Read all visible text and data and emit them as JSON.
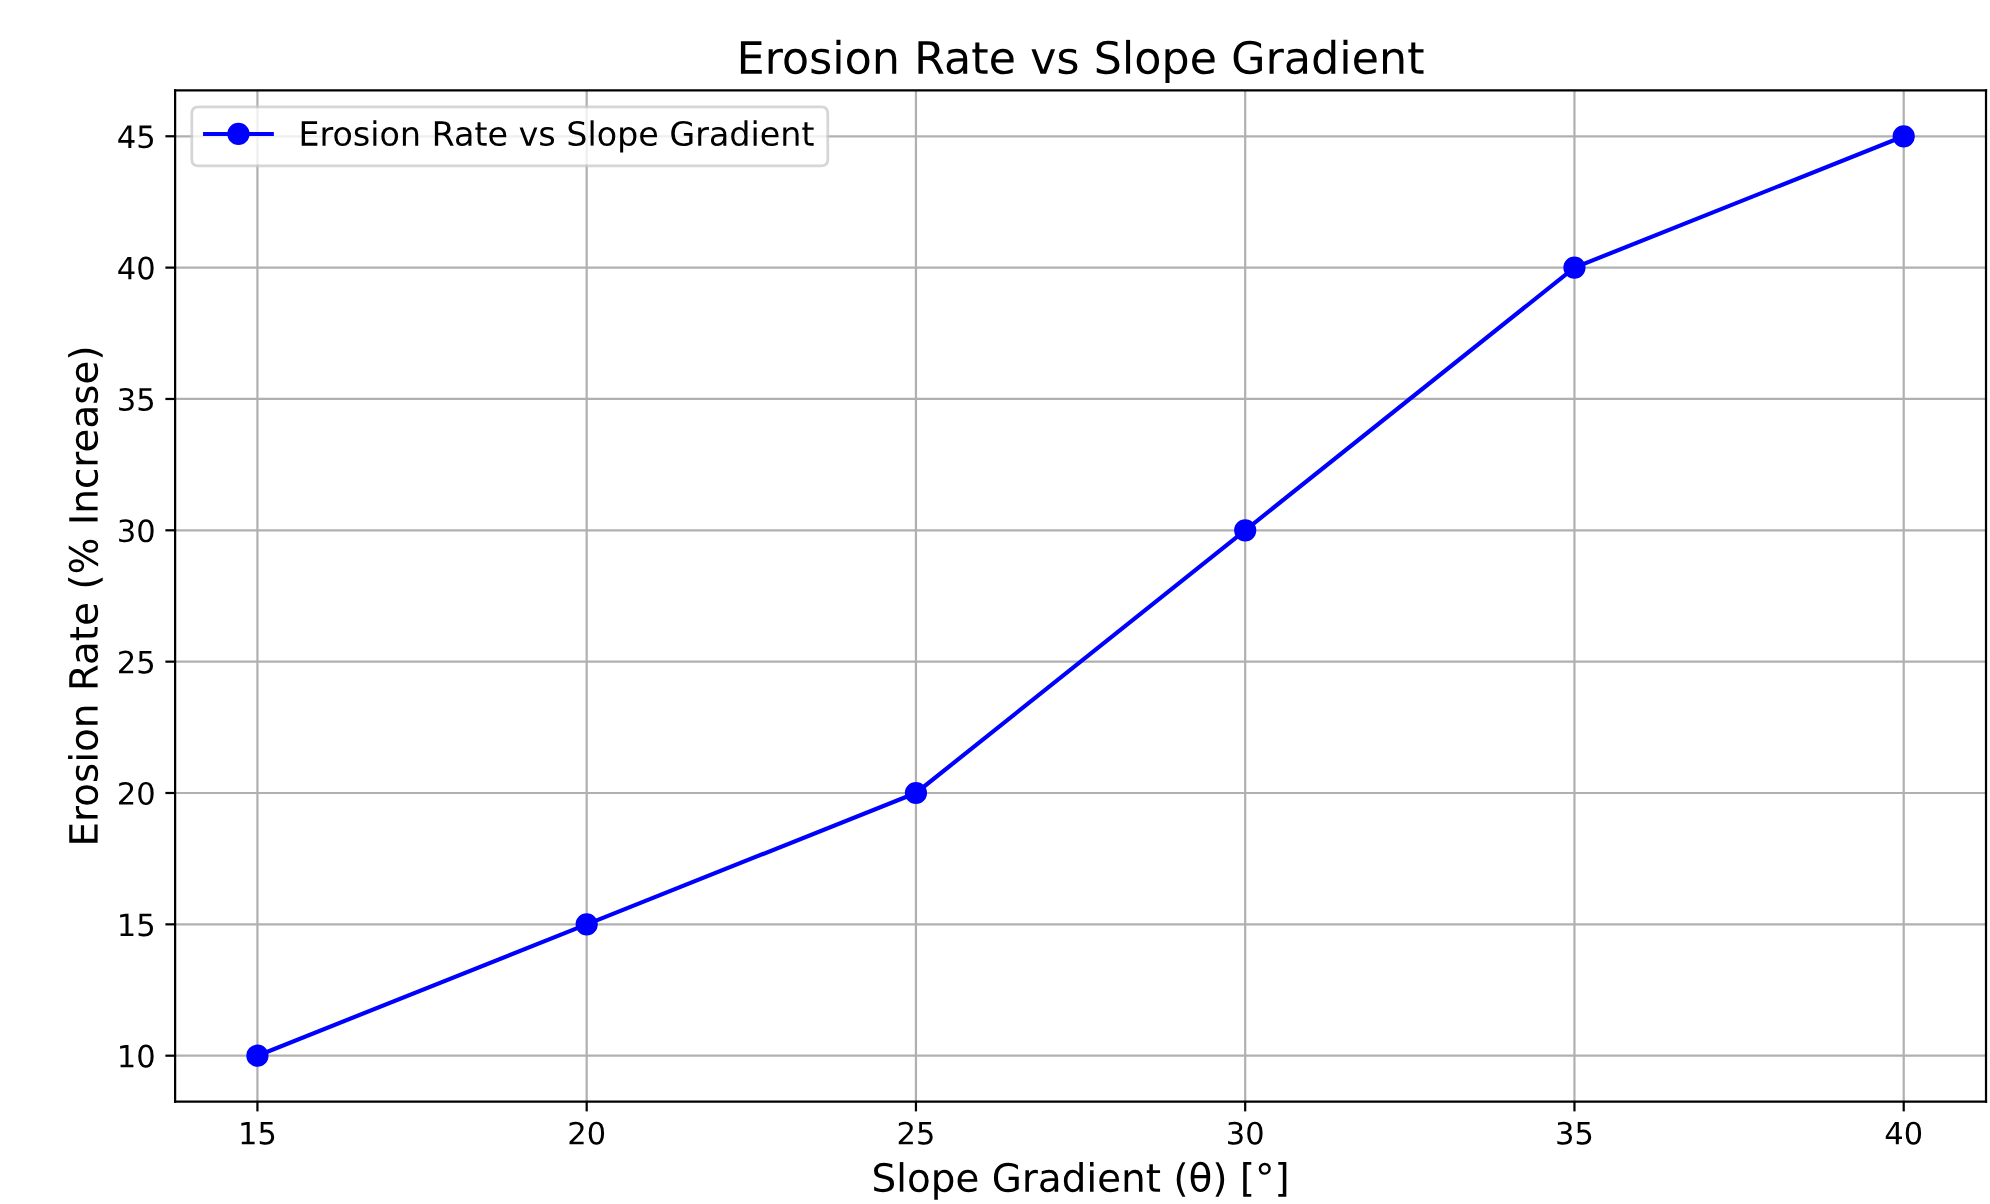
{
  "chart_data": {
    "type": "line",
    "title": "Erosion Rate vs Slope Gradient",
    "xlabel": "Slope Gradient (θ) [°]",
    "ylabel": "Erosion Rate (% Increase)",
    "x": [
      15,
      20,
      25,
      30,
      35,
      40
    ],
    "series": [
      {
        "name": "Erosion Rate vs Slope Gradient",
        "color": "#0000ff",
        "values": [
          10,
          15,
          20,
          30,
          40,
          45
        ]
      }
    ],
    "xlim": [
      13.75,
      41.25
    ],
    "xticks": [
      15,
      20,
      25,
      30,
      35,
      40
    ],
    "ylim": [
      8.25,
      46.75
    ],
    "yticks": [
      10,
      15,
      20,
      25,
      30,
      35,
      40,
      45
    ],
    "grid": true,
    "legend": "top left",
    "marker": "circle",
    "line_style": "solid"
  }
}
